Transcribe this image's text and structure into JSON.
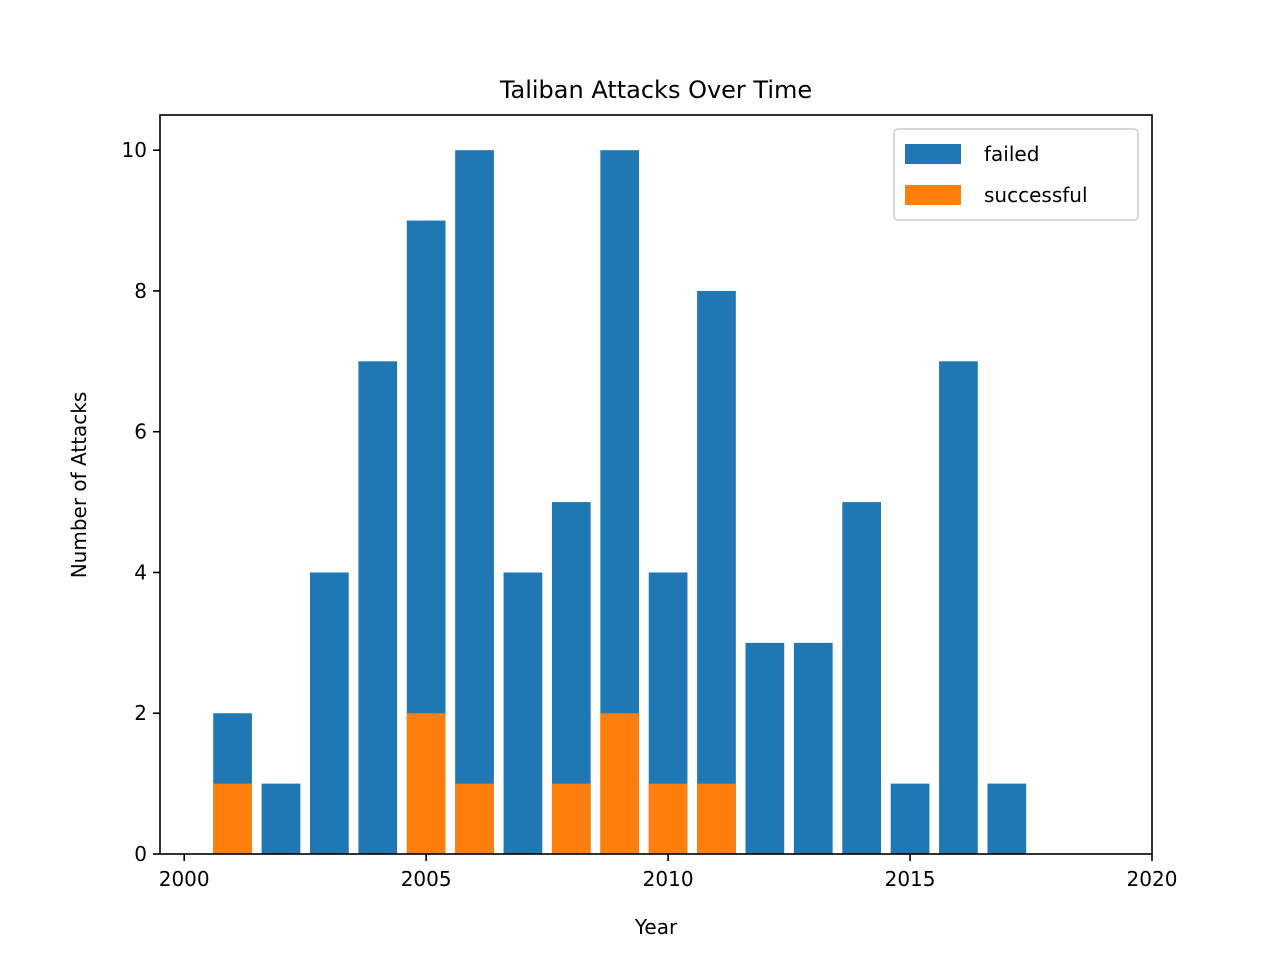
{
  "chart_data": {
    "type": "bar",
    "stacked": false,
    "title": "Taliban Attacks Over Time",
    "xlabel": "Year",
    "ylabel": "Number of Attacks",
    "x": [
      2001,
      2002,
      2003,
      2004,
      2005,
      2006,
      2007,
      2008,
      2009,
      2010,
      2011,
      2012,
      2013,
      2014,
      2015,
      2016,
      2017
    ],
    "series": [
      {
        "name": "failed",
        "color": "#1f77b4",
        "values": [
          2,
          1,
          4,
          7,
          9,
          10,
          4,
          5,
          10,
          4,
          8,
          3,
          3,
          5,
          1,
          7,
          1
        ]
      },
      {
        "name": "successful",
        "color": "#ff7f0e",
        "values": [
          1,
          0,
          0,
          0,
          2,
          1,
          0,
          1,
          2,
          1,
          1,
          0,
          0,
          0,
          0,
          0,
          0
        ]
      }
    ],
    "xlim": [
      1999.5,
      2020
    ],
    "ylim": [
      0,
      10.5
    ],
    "xticks": [
      "2000",
      "2005",
      "2010",
      "2015",
      "2020"
    ],
    "yticks": [
      "0",
      "2",
      "4",
      "6",
      "8",
      "10"
    ],
    "bar_width": 0.8,
    "grid": false,
    "legend_position": "upper right"
  }
}
